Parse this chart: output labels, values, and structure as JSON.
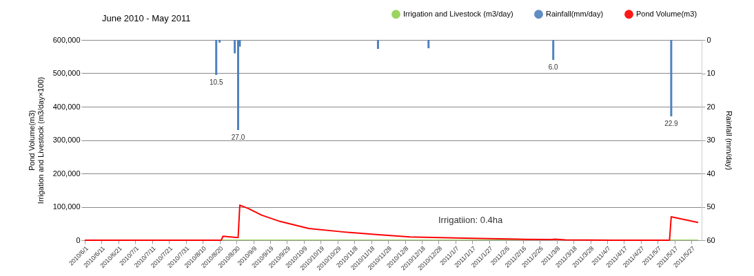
{
  "chart_data": {
    "type": "line",
    "title": "June 2010 -  May 2011",
    "ylabel": "Pond Volume(m3)\nIrrigation and  Livestock (m3/day×100)",
    "y2label": "Rainfall (mm/day)",
    "annotations": [
      "Irrigatiion: 0.4ha"
    ],
    "xlim": [
      "2010-06-01",
      "2011-05-31"
    ],
    "xticks": [
      {
        "value": "2010-06-01",
        "label": "2010/6/1"
      },
      {
        "value": "2010-06-11",
        "label": "2010/6/11"
      },
      {
        "value": "2010-06-21",
        "label": "2010/6/21"
      },
      {
        "value": "2010-07-01",
        "label": "2010/7/1"
      },
      {
        "value": "2010-07-11",
        "label": "2010/7/11"
      },
      {
        "value": "2010-07-21",
        "label": "2010/7/21"
      },
      {
        "value": "2010-07-31",
        "label": "2010/7/31"
      },
      {
        "value": "2010-08-10",
        "label": "2010/8/10"
      },
      {
        "value": "2010-08-20",
        "label": "2010/8/20"
      },
      {
        "value": "2010-08-30",
        "label": "2010/8/30"
      },
      {
        "value": "2010-09-09",
        "label": "2010/9/9"
      },
      {
        "value": "2010-09-19",
        "label": "2010/9/19"
      },
      {
        "value": "2010-09-29",
        "label": "2010/9/29"
      },
      {
        "value": "2010-10-09",
        "label": "2010/10/9"
      },
      {
        "value": "2010-10-19",
        "label": "2010/10/19"
      },
      {
        "value": "2010-10-29",
        "label": "2010/10/29"
      },
      {
        "value": "2010-11-08",
        "label": "2010/11/8"
      },
      {
        "value": "2010-11-18",
        "label": "2010/11/18"
      },
      {
        "value": "2010-11-28",
        "label": "2010/11/28"
      },
      {
        "value": "2010-12-08",
        "label": "2010/12/8"
      },
      {
        "value": "2010-12-18",
        "label": "2010/12/18"
      },
      {
        "value": "2010-12-28",
        "label": "2010/12/28"
      },
      {
        "value": "2011-01-07",
        "label": "2011/1/7"
      },
      {
        "value": "2011-01-17",
        "label": "2011/1/17"
      },
      {
        "value": "2011-01-27",
        "label": "2011/1/27"
      },
      {
        "value": "2011-02-06",
        "label": "2011/2/6"
      },
      {
        "value": "2011-02-16",
        "label": "2011/2/16"
      },
      {
        "value": "2011-02-26",
        "label": "2011/2/26"
      },
      {
        "value": "2011-03-08",
        "label": "2011/3/8"
      },
      {
        "value": "2011-03-18",
        "label": "2011/3/18"
      },
      {
        "value": "2011-03-28",
        "label": "2011/3/28"
      },
      {
        "value": "2011-04-07",
        "label": "2011/4/7"
      },
      {
        "value": "2011-04-17",
        "label": "2011/4/17"
      },
      {
        "value": "2011-04-27",
        "label": "2011/4/27"
      },
      {
        "value": "2011-05-07",
        "label": "2011/5/7"
      },
      {
        "value": "2011-05-17",
        "label": "2011/5/17"
      },
      {
        "value": "2011-05-27",
        "label": "2011/5/27"
      }
    ],
    "ylim": [
      0,
      600000
    ],
    "yticks": [
      0,
      {
        "value": 100000,
        "label": "100,000"
      },
      {
        "value": 200000,
        "label": "200,000"
      },
      {
        "value": 300000,
        "label": "300,000"
      },
      {
        "value": 400000,
        "label": "400,000"
      },
      {
        "value": 500000,
        "label": "500,000"
      },
      {
        "value": 600000,
        "label": "600,000"
      }
    ],
    "y2lim": [
      60,
      0
    ],
    "y2ticks": [
      0,
      10,
      20,
      30,
      40,
      50,
      60
    ],
    "grid": "y",
    "legend": "top right",
    "series": [
      {
        "name": "Irrigation and Livestock (m3/day)",
        "type": "area",
        "color": "#92d050",
        "x": [
          "2010-06-01",
          "2010-08-20",
          "2010-08-21",
          "2011-05-31"
        ],
        "values": [
          0,
          0,
          2000,
          2000
        ]
      },
      {
        "name": "Rainfall(mm/day)",
        "type": "bar",
        "axis": "y2",
        "color": "#4f81bd",
        "x": [
          "2010-08-18",
          "2010-08-20",
          "2010-08-29",
          "2010-08-31",
          "2010-09-01",
          "2010-11-22",
          "2010-12-22",
          "2011-03-06",
          "2011-05-15"
        ],
        "values": [
          10.5,
          0.8,
          4,
          27.0,
          2,
          2.7,
          2.5,
          6.0,
          22.9
        ],
        "value_labels": [
          "10.5",
          null,
          null,
          "27.0",
          null,
          null,
          null,
          "6.0",
          "22.9"
        ]
      },
      {
        "name": "Pond Volume(m3)",
        "color": "#ff0000",
        "x": [
          "2010-06-01",
          "2010-08-21",
          "2010-08-22",
          "2010-08-30",
          "2010-08-31",
          "2010-09-01",
          "2010-09-06",
          "2010-09-14",
          "2010-09-25",
          "2010-10-12",
          "2010-11-01",
          "2010-11-21",
          "2010-12-11",
          "2011-01-12",
          "2011-02-13",
          "2011-03-05",
          "2011-03-07",
          "2011-03-13",
          "2011-04-10",
          "2011-05-14",
          "2011-05-15",
          "2011-05-31"
        ],
        "values": [
          0,
          0,
          12000,
          8000,
          8000,
          105000,
          95000,
          75000,
          56000,
          35000,
          25000,
          17000,
          10000,
          6000,
          3000,
          2000,
          3000,
          1000,
          0,
          0,
          70000,
          53000
        ]
      }
    ]
  }
}
